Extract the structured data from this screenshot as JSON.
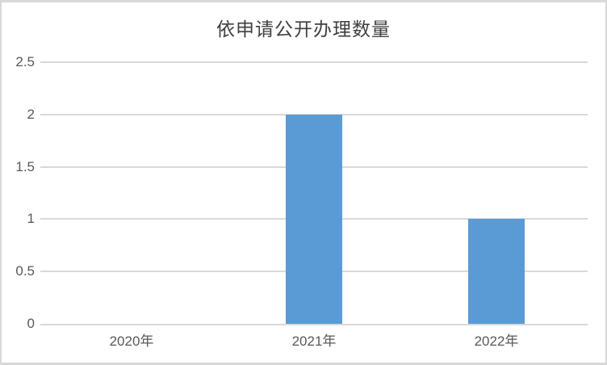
{
  "chart_data": {
    "type": "bar",
    "title": "依申请公开办理数量",
    "categories": [
      "2020年",
      "2021年",
      "2022年"
    ],
    "values": [
      0,
      2,
      1
    ],
    "series": [
      {
        "name": "依申请公开办理数量",
        "values": [
          0,
          2,
          1
        ]
      }
    ],
    "xlabel": "",
    "ylabel": "",
    "ylim": [
      0,
      2.5
    ],
    "yticks": [
      0,
      0.5,
      1,
      1.5,
      2,
      2.5
    ],
    "ytick_labels": [
      "0",
      "0.5",
      "1",
      "1.5",
      "2",
      "2.5"
    ],
    "grid": "horizontal",
    "legend_position": "none",
    "colors": {
      "bar": "#5B9BD5",
      "gridline": "#D9D9D9",
      "axis_line": "#D9D9D9",
      "tick_text": "#595959",
      "title_text": "#404040",
      "frame_border": "#D9D9D9",
      "background": "#FFFFFF"
    }
  }
}
